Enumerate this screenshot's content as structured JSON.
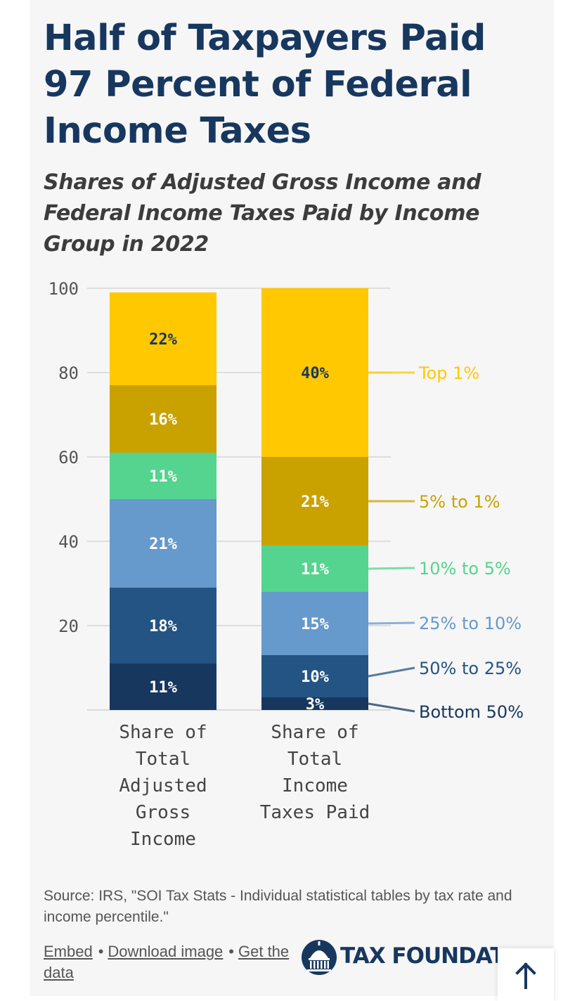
{
  "chart_data": {
    "type": "bar",
    "stacked": true,
    "title": "Half of Taxpayers Paid 97 Percent of Federal Income Taxes",
    "subtitle": "Shares of Adjusted Gross Income and Federal Income Taxes Paid by Income Group in 2022",
    "categories": [
      [
        "Share of",
        "Total",
        "Adjusted",
        "Gross",
        "Income"
      ],
      [
        "Share of",
        "Total",
        "Income",
        "Taxes Paid"
      ]
    ],
    "ylim": [
      0,
      100
    ],
    "yticks": [
      "100",
      "80",
      "60",
      "40",
      "20"
    ],
    "grid": true,
    "legend_position": "right",
    "series": [
      {
        "name": "Bottom 50%",
        "color": "#17375e",
        "label_color": "#17375e",
        "values": [
          11,
          3
        ],
        "labels": [
          "11%",
          "3%"
        ]
      },
      {
        "name": "50% to 25%",
        "color": "#235483",
        "label_color": "#235483",
        "values": [
          18,
          10
        ],
        "labels": [
          "18%",
          "10%"
        ]
      },
      {
        "name": "25% to 10%",
        "color": "#6699cc",
        "label_color": "#6699cc",
        "values": [
          21,
          15
        ],
        "labels": [
          "21%",
          "15%"
        ]
      },
      {
        "name": "10% to 5%",
        "color": "#55d48f",
        "label_color": "#55d48f",
        "values": [
          11,
          11
        ],
        "labels": [
          "11%",
          "11%"
        ]
      },
      {
        "name": "5% to 1%",
        "color": "#c9a200",
        "label_color": "#c9a200",
        "values": [
          16,
          21
        ],
        "labels": [
          "16%",
          "21%"
        ]
      },
      {
        "name": "Top 1%",
        "color": "#ffc800",
        "label_color": "#ffc800",
        "values": [
          22,
          40
        ],
        "labels": [
          "22%",
          "40%"
        ]
      }
    ]
  },
  "source_text": "Source: IRS, \"SOI Tax Stats - Individual statistical tables by tax rate and income percentile.\"",
  "links": {
    "embed": "Embed",
    "separator": "•",
    "download": "Download image",
    "get_data": "Get the data"
  },
  "logo": {
    "text": "TAX FOUNDATION",
    "icon": "capitol-dome-icon"
  },
  "scroll_button": {
    "icon": "arrow-up-icon"
  }
}
